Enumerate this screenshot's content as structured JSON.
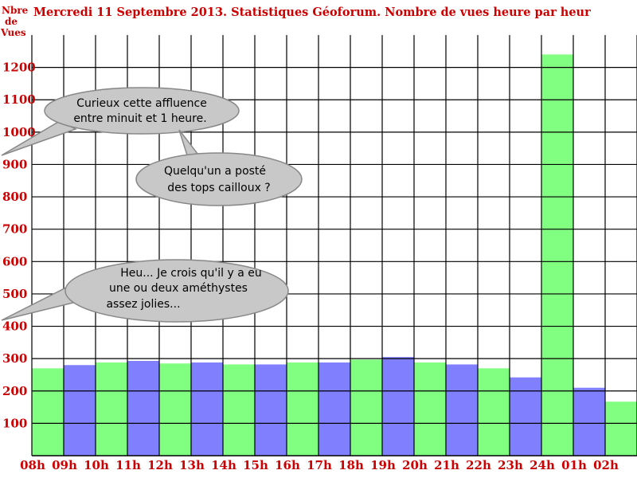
{
  "header": {
    "title": "Mercredi 11 Septembre 2013. Statistiques Géoforum. Nombre de vues heure par heur"
  },
  "axis": {
    "ylabel_lines": [
      "Nbre",
      "de",
      "Vues"
    ]
  },
  "bubbles": [
    {
      "lines": [
        "Curieux cette affluence",
        "entre minuit et 1 heure."
      ]
    },
    {
      "lines": [
        "Quelqu'un a posté",
        "des tops cailloux ?"
      ]
    },
    {
      "lines": [
        "Heu... Je crois qu'il y a eu",
        "une ou deux améthystes",
        "assez jolies..."
      ]
    }
  ],
  "colors": {
    "title": "#cc0000",
    "labels": "#cc0000",
    "bar_green": "#80ff80",
    "bar_blue": "#8080ff",
    "grid": "#000000",
    "bubble_fill": "#c8c8c8",
    "bubble_stroke": "#888888"
  },
  "chart_data": {
    "type": "bar",
    "title": "Mercredi 11 Septembre 2013. Statistiques Géoforum. Nombre de vues heure par heur",
    "xlabel": "",
    "ylabel": "Nbre de Vues",
    "categories": [
      "08h",
      "09h",
      "10h",
      "11h",
      "12h",
      "13h",
      "14h",
      "15h",
      "16h",
      "17h",
      "18h",
      "19h",
      "20h",
      "21h",
      "22h",
      "23h",
      "24h",
      "01h",
      "02h"
    ],
    "values": [
      270,
      280,
      288,
      293,
      285,
      288,
      282,
      282,
      288,
      288,
      297,
      305,
      288,
      282,
      270,
      242,
      1240,
      210,
      167
    ],
    "bar_colors": [
      "green",
      "blue",
      "green",
      "blue",
      "green",
      "blue",
      "green",
      "blue",
      "green",
      "blue",
      "green",
      "blue",
      "green",
      "blue",
      "green",
      "blue",
      "green",
      "blue",
      "green"
    ],
    "y_ticks": [
      100,
      200,
      300,
      400,
      500,
      600,
      700,
      800,
      900,
      1000,
      1100,
      1200
    ],
    "ylim": [
      0,
      1300
    ],
    "grid": true,
    "legend": "none"
  }
}
